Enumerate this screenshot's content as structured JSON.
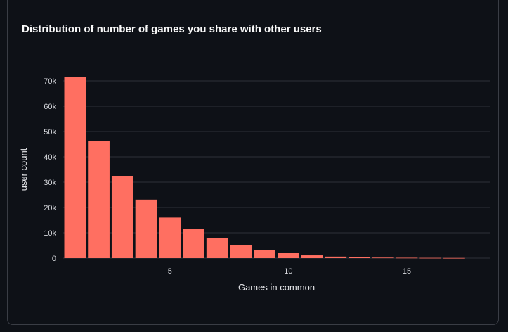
{
  "chart_data": {
    "type": "bar",
    "title": "Distribution of number of games you share with other users",
    "xlabel": "Games in common",
    "ylabel": "user count",
    "categories": [
      1,
      2,
      3,
      4,
      5,
      6,
      7,
      8,
      9,
      10,
      11,
      12,
      13,
      14,
      15,
      16,
      17
    ],
    "values": [
      71500,
      46300,
      32500,
      23100,
      16000,
      11500,
      7800,
      5100,
      3100,
      2000,
      1100,
      600,
      300,
      200,
      150,
      100,
      60
    ],
    "ylim": [
      0,
      70000
    ],
    "xlim": [
      0.5,
      18.5
    ],
    "yticks": [
      0,
      10000,
      20000,
      30000,
      40000,
      50000,
      60000,
      70000
    ],
    "ytick_labels": [
      "0",
      "10k",
      "20k",
      "30k",
      "40k",
      "50k",
      "60k",
      "70k"
    ],
    "xticks": [
      5,
      10,
      15
    ],
    "xtick_labels": [
      "5",
      "10",
      "15"
    ],
    "grid": true,
    "bar_color": "#ff6f61"
  }
}
